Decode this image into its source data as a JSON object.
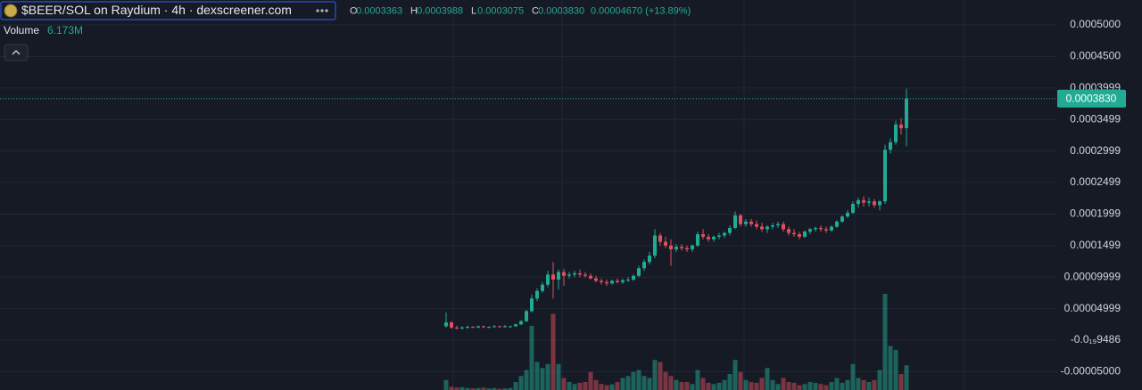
{
  "chart_data": {
    "type": "candlestick",
    "title": "$BEER/SOL on Raydium · 4h · dexscreener.com",
    "ohlc_keys": [
      "O",
      "H",
      "L",
      "C"
    ],
    "ohlc_labels": [
      "0.0003363",
      "0.0003988",
      "0.0003075",
      "0.0003830"
    ],
    "change_label": "0.00004670 (+13.89%)",
    "volume_title": "Volume",
    "volume_label": "6.173M",
    "up_color": "#22ab94",
    "down_color": "#e0505f",
    "grid": true,
    "ylim": [
      -7.91e-05,
      0.0005395
    ],
    "yticks": [
      {
        "value": 0.0005,
        "label": "0.0005000"
      },
      {
        "value": 0.00045,
        "label": "0.0004500"
      },
      0.0003999,
      0.0003499,
      0.0002999,
      0.0002499,
      0.0001999,
      0.0001499,
      9.999e-05,
      4.999e-05,
      {
        "value": -9.486e-20,
        "label": "-0.0₁₉9486"
      },
      {
        "value": -5e-05,
        "label": "-0.00005000"
      }
    ],
    "open": [
      2.2e-05,
      2.8e-05,
      2e-05,
      1.9e-05,
      2e-05,
      2.1e-05,
      2e-05,
      2.2e-05,
      2.1e-05,
      2.1e-05,
      2.2e-05,
      2.1e-05,
      2.2e-05,
      2.2e-05,
      2.5e-05,
      3e-05,
      4.6e-05,
      6.6e-05,
      7.8e-05,
      8.8e-05,
      0.000104,
      9.6e-05,
      0.000108,
      0.000102,
      0.000104,
      0.000106,
      0.000104,
      0.000102,
      9.8e-05,
      9.4e-05,
      9.2e-05,
      9e-05,
      9.4e-05,
      9.2e-05,
      9.5e-05,
      9.6e-05,
      0.000102,
      0.000114,
      0.000124,
      0.000134,
      0.000166,
      0.000156,
      0.00015,
      0.000144,
      0.000148,
      0.000146,
      0.000144,
      0.00015,
      0.000168,
      0.000164,
      0.00016,
      0.000164,
      0.000166,
      0.00017,
      0.000178,
      0.000198,
      0.000184,
      0.000188,
      0.000184,
      0.00018,
      0.000176,
      0.00018,
      0.000182,
      0.000184,
      0.000176,
      0.00017,
      0.000168,
      0.000164,
      0.000172,
      0.000176,
      0.000178,
      0.000176,
      0.000174,
      0.00018,
      0.000188,
      0.000196,
      0.000202,
      0.000216,
      0.000222,
      0.000218,
      0.00022,
      0.000214,
      0.00022,
      0.000302,
      0.000314,
      0.000342,
      0.0003363
    ],
    "high": [
      4.4e-05,
      3e-05,
      2.3e-05,
      2.2e-05,
      2.3e-05,
      2.2e-05,
      2.3e-05,
      2.3e-05,
      2.2e-05,
      2.4e-05,
      2.3e-05,
      2.4e-05,
      2.3e-05,
      2.6e-05,
      3.2e-05,
      4.8e-05,
      7.2e-05,
      8.2e-05,
      9.2e-05,
      0.00011,
      0.000124,
      0.000112,
      0.000113,
      0.000108,
      0.00011,
      0.000112,
      0.000108,
      0.000106,
      0.000102,
      9.8e-05,
      9.6e-05,
      9.6e-05,
      9.8e-05,
      9.7e-05,
      0.0001,
      0.000104,
      0.000118,
      0.000128,
      0.00014,
      0.000176,
      0.00017,
      0.000164,
      0.00016,
      0.000152,
      0.000152,
      0.00015,
      0.000152,
      0.000172,
      0.000176,
      0.000168,
      0.000166,
      0.00017,
      0.000172,
      0.000182,
      0.000204,
      0.0002,
      0.000192,
      0.000192,
      0.00019,
      0.000186,
      0.000182,
      0.000186,
      0.000188,
      0.000188,
      0.00018,
      0.000176,
      0.000172,
      0.000174,
      0.000178,
      0.00018,
      0.000182,
      0.00018,
      0.000182,
      0.00019,
      0.000198,
      0.000206,
      0.00022,
      0.000226,
      0.000228,
      0.000226,
      0.000224,
      0.000222,
      0.00031,
      0.00032,
      0.000348,
      0.000352,
      0.0003988
    ],
    "low": [
      2e-05,
      1.8e-05,
      1.7e-05,
      1.7e-05,
      1.8e-05,
      1.9e-05,
      1.9e-05,
      1.9e-05,
      1.9e-05,
      2e-05,
      2e-05,
      2e-05,
      2e-05,
      2.1e-05,
      2.4e-05,
      2.9e-05,
      4.4e-05,
      6.2e-05,
      7.5e-05,
      8.4e-05,
      6.6e-05,
      8e-05,
      8.6e-05,
      9.8e-05,
      0.0001,
      0.0001,
      9.9e-05,
      9.6e-05,
      9.2e-05,
      8.8e-05,
      8.6e-05,
      8.8e-05,
      9e-05,
      8.9e-05,
      9.2e-05,
      9.4e-05,
      0.0001,
      0.00011,
      0.00012,
      0.00013,
      0.00015,
      0.000146,
      0.000118,
      0.00014,
      0.000142,
      0.00014,
      0.00014,
      0.000148,
      0.00016,
      0.000156,
      0.000156,
      0.00016,
      0.000162,
      0.000166,
      0.000176,
      0.00018,
      0.00018,
      0.00018,
      0.000176,
      0.000172,
      0.00017,
      0.000176,
      0.000178,
      0.000172,
      0.000166,
      0.000164,
      0.00016,
      0.000162,
      0.000168,
      0.000172,
      0.000172,
      0.00017,
      0.000172,
      0.000178,
      0.000186,
      0.000194,
      0.0002,
      0.00021,
      0.000212,
      0.000212,
      0.00021,
      0.000206,
      0.000216,
      0.000296,
      0.00031,
      0.000326,
      0.0003075
    ],
    "close": [
      2.8e-05,
      2e-05,
      1.9e-05,
      2e-05,
      2.1e-05,
      2e-05,
      2.2e-05,
      2.1e-05,
      2.1e-05,
      2.2e-05,
      2.1e-05,
      2.2e-05,
      2.2e-05,
      2.5e-05,
      3e-05,
      4.6e-05,
      6.6e-05,
      7.8e-05,
      8.8e-05,
      0.000104,
      9.6e-05,
      0.000108,
      0.000102,
      0.000104,
      0.000106,
      0.000104,
      0.000102,
      9.8e-05,
      9.4e-05,
      9.2e-05,
      9e-05,
      9.4e-05,
      9.2e-05,
      9.5e-05,
      9.6e-05,
      0.000102,
      0.000114,
      0.000124,
      0.000134,
      0.000166,
      0.000156,
      0.00015,
      0.000144,
      0.000148,
      0.000146,
      0.000144,
      0.00015,
      0.000168,
      0.000164,
      0.00016,
      0.000164,
      0.000166,
      0.00017,
      0.000178,
      0.000198,
      0.000184,
      0.000188,
      0.000184,
      0.00018,
      0.000176,
      0.00018,
      0.000182,
      0.000184,
      0.000176,
      0.00017,
      0.000168,
      0.000164,
      0.000172,
      0.000176,
      0.000178,
      0.000176,
      0.000174,
      0.00018,
      0.000188,
      0.000196,
      0.000202,
      0.000216,
      0.000222,
      0.000218,
      0.00022,
      0.000214,
      0.00022,
      0.000302,
      0.000314,
      0.000342,
      0.000336,
      0.000383
    ],
    "volume": [
      2500000,
      800000,
      600000,
      700000,
      500000,
      400000,
      500000,
      600000,
      400000,
      500000,
      300000,
      400000,
      500000,
      2000000,
      3500000,
      5000000,
      16000000,
      7000000,
      5500000,
      6500000,
      19000000,
      6500000,
      3000000,
      2000000,
      1500000,
      1800000,
      2000000,
      4500000,
      2500000,
      1500000,
      1200000,
      1400000,
      2000000,
      3000000,
      3500000,
      4500000,
      5000000,
      3500000,
      3000000,
      7500000,
      7000000,
      4500000,
      3500000,
      2500000,
      2000000,
      2000000,
      1500000,
      5000000,
      3000000,
      1800000,
      1500000,
      1800000,
      2500000,
      4000000,
      7500000,
      4500000,
      2500000,
      2000000,
      1800000,
      3000000,
      5500000,
      2500000,
      1500000,
      3000000,
      2000000,
      1800000,
      1200000,
      1500000,
      2000000,
      1800000,
      1500000,
      1200000,
      2000000,
      3000000,
      1800000,
      2500000,
      6500000,
      3000000,
      2500000,
      2000000,
      2500000,
      5000000,
      24000000,
      11000000,
      10000000,
      4000000,
      6173000
    ]
  }
}
